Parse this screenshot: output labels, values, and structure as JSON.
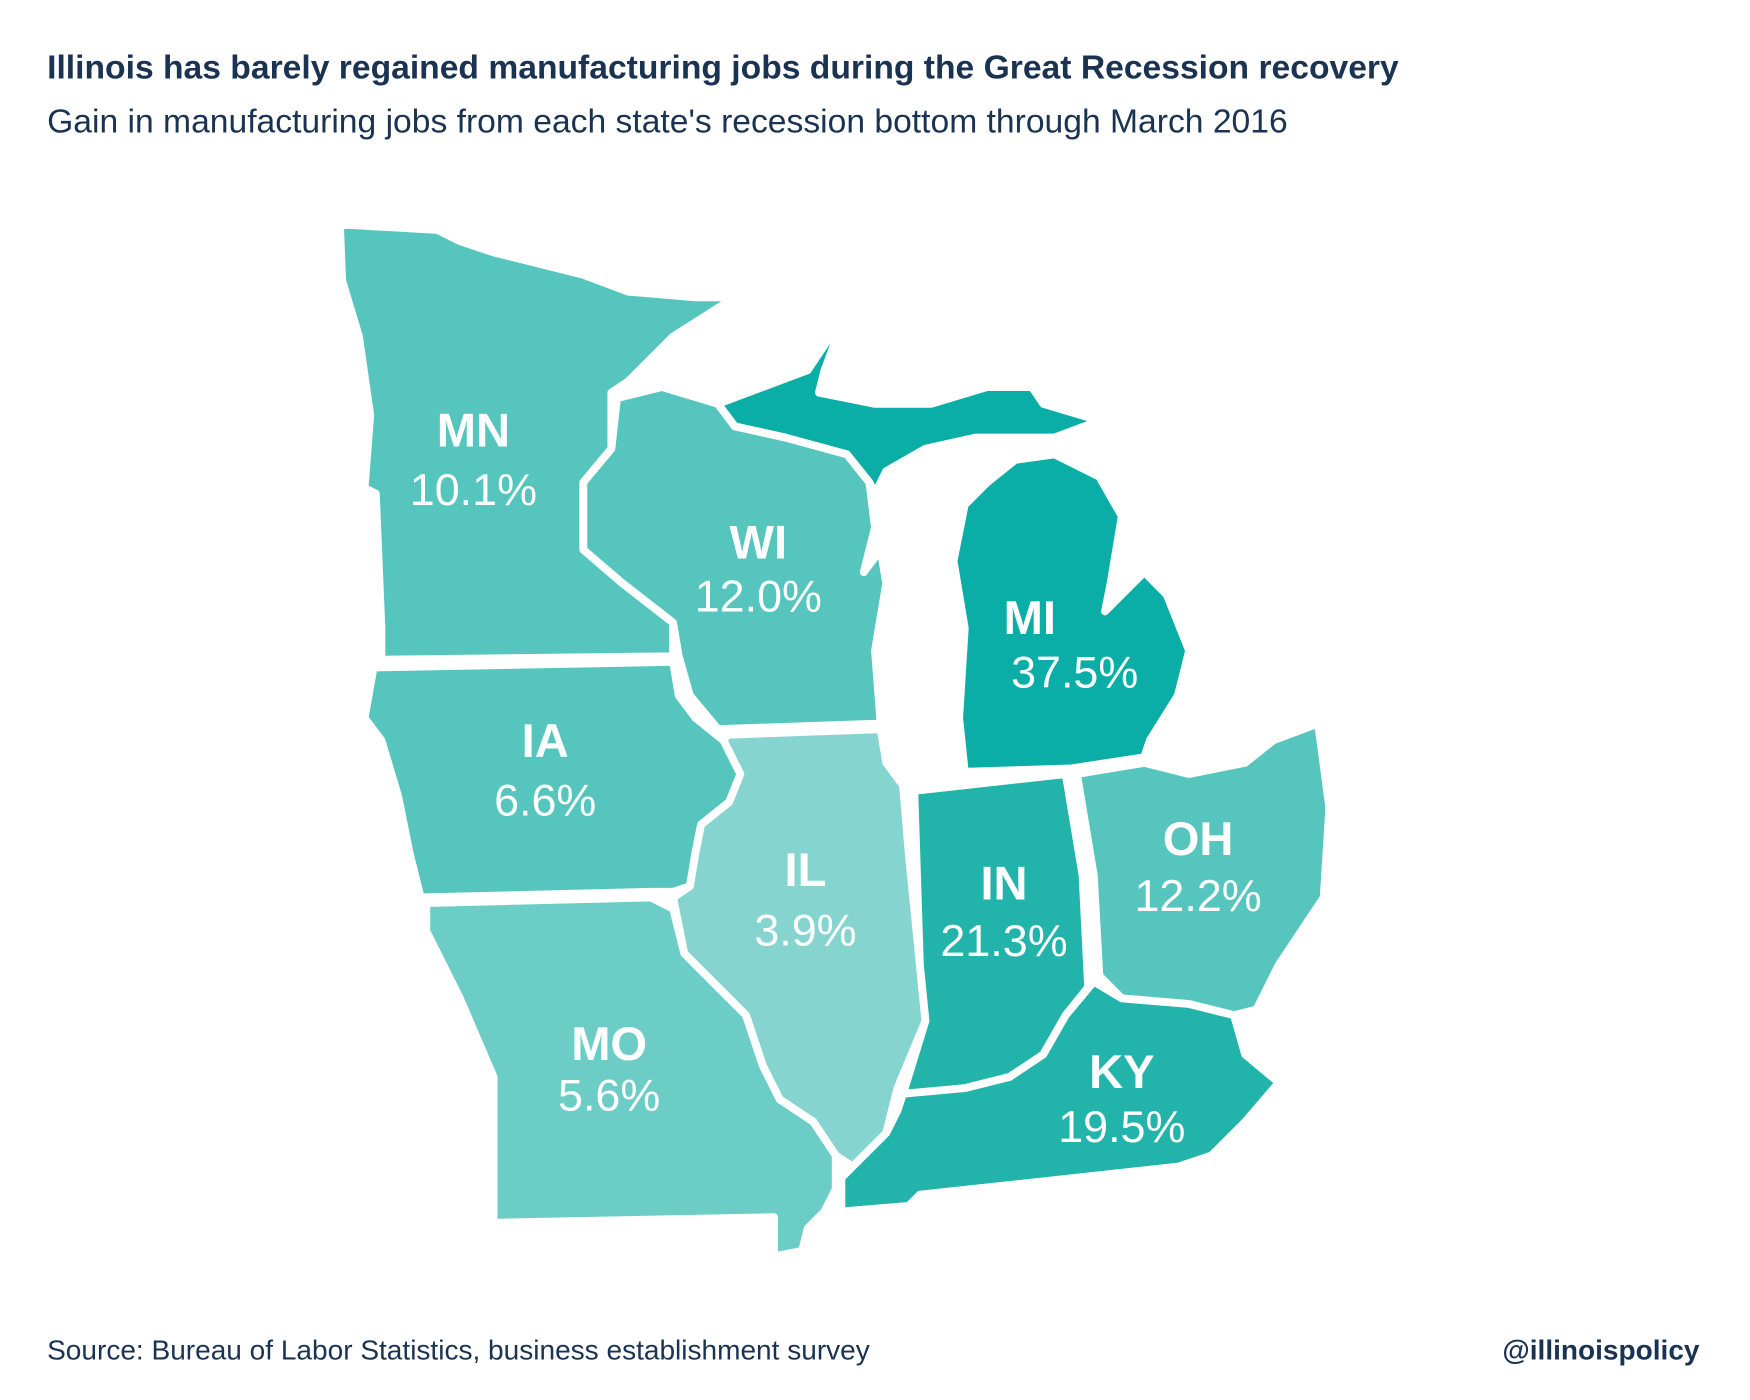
{
  "title": "Illinois has barely regained manufacturing jobs during the Great Recession recovery",
  "subtitle": "Gain in manufacturing jobs from each state's recession bottom through March 2016",
  "source": "Source: Bureau of Labor Statistics, business establishment survey",
  "handle": "@illinoispolicy",
  "chart_data": {
    "type": "choropleth-map",
    "unit": "%",
    "states": [
      {
        "abbr": "MN",
        "value": 10.1,
        "label": "10.1%",
        "color": "#55c5be"
      },
      {
        "abbr": "WI",
        "value": 12.0,
        "label": "12.0%",
        "color": "#55c5be"
      },
      {
        "abbr": "MI",
        "value": 37.5,
        "label": "37.5%",
        "color": "#0aaea6"
      },
      {
        "abbr": "IA",
        "value": 6.6,
        "label": "6.6%",
        "color": "#55c5be"
      },
      {
        "abbr": "IL",
        "value": 3.9,
        "label": "3.9%",
        "color": "#86d4d0"
      },
      {
        "abbr": "MO",
        "value": 5.6,
        "label": "5.6%",
        "color": "#6ccdc7"
      },
      {
        "abbr": "IN",
        "value": 21.3,
        "label": "21.3%",
        "color": "#22b3ab"
      },
      {
        "abbr": "OH",
        "value": 12.2,
        "label": "12.2%",
        "color": "#55c5be"
      },
      {
        "abbr": "KY",
        "value": 19.5,
        "label": "19.5%",
        "color": "#22b3ab"
      }
    ]
  }
}
